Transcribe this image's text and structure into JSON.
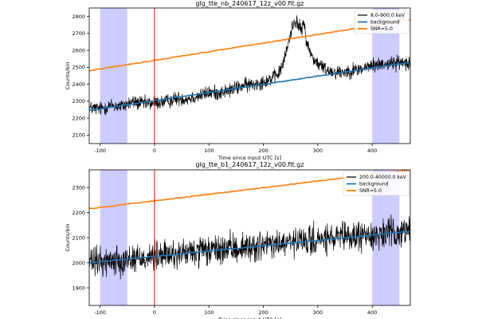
{
  "chart_data": [
    {
      "type": "line",
      "title": "glg_tte_nb_240617_12z_v00.fit.gz",
      "xlabel": "Time since input UTC [s]",
      "ylabel": "Counts/bin",
      "xlim": [
        -120,
        470
      ],
      "ylim": [
        2050,
        2850
      ],
      "xticks": [
        -100,
        0,
        100,
        200,
        300,
        400
      ],
      "yticks": [
        2100,
        2200,
        2300,
        2400,
        2500,
        2600,
        2700,
        2800
      ],
      "legend_position": "top-right",
      "bands": [
        [
          -100,
          -50
        ],
        [
          400,
          450
        ]
      ],
      "trigger_line_x": 0,
      "series": [
        {
          "name": "8.0-900.0 keV",
          "kind": "lightcurve",
          "color": "#000000",
          "x": [
            -120,
            -100,
            -80,
            -60,
            -40,
            -20,
            0,
            20,
            40,
            60,
            80,
            100,
            120,
            140,
            160,
            180,
            200,
            220,
            230,
            240,
            250,
            255,
            260,
            265,
            270,
            275,
            280,
            290,
            300,
            320,
            340,
            360,
            380,
            400,
            420,
            440,
            460,
            470
          ],
          "y": [
            2260,
            2255,
            2275,
            2270,
            2295,
            2285,
            2290,
            2295,
            2315,
            2315,
            2330,
            2350,
            2350,
            2365,
            2390,
            2400,
            2415,
            2440,
            2470,
            2560,
            2700,
            2760,
            2780,
            2740,
            2720,
            2760,
            2640,
            2560,
            2520,
            2480,
            2470,
            2480,
            2490,
            2510,
            2520,
            2525,
            2530,
            2535
          ],
          "noise": 40
        },
        {
          "name": "background",
          "kind": "linear",
          "color": "#1f77b4",
          "x": [
            -120,
            470
          ],
          "y": [
            2245,
            2530
          ]
        },
        {
          "name": "SNR=5.0",
          "kind": "linear",
          "color": "#ff7f0e",
          "x": [
            -120,
            470
          ],
          "y": [
            2480,
            2780
          ]
        }
      ]
    },
    {
      "type": "line",
      "title": "glg_tte_b1_240617_12z_v00.fit.gz",
      "xlabel": "Time since input UTC [s]",
      "ylabel": "Counts/bin",
      "xlim": [
        -120,
        470
      ],
      "ylim": [
        1830,
        2370
      ],
      "xticks": [
        -100,
        0,
        100,
        200,
        300,
        400
      ],
      "yticks": [
        1900,
        2000,
        2100,
        2200,
        2300
      ],
      "legend_position": "top-right",
      "bands": [
        [
          -100,
          -50
        ],
        [
          400,
          450
        ]
      ],
      "trigger_line_x": 0,
      "series": [
        {
          "name": "200.0-40000.0 keV",
          "kind": "lightcurve",
          "color": "#000000",
          "x": [
            -120,
            470
          ],
          "y": [
            2000,
            2125
          ],
          "noise": 55
        },
        {
          "name": "background",
          "kind": "linear",
          "color": "#1f77b4",
          "x": [
            -120,
            470
          ],
          "y": [
            2000,
            2125
          ]
        },
        {
          "name": "SNR=5.0",
          "kind": "linear",
          "color": "#ff7f0e",
          "x": [
            -120,
            470
          ],
          "y": [
            2215,
            2370
          ]
        }
      ]
    }
  ]
}
